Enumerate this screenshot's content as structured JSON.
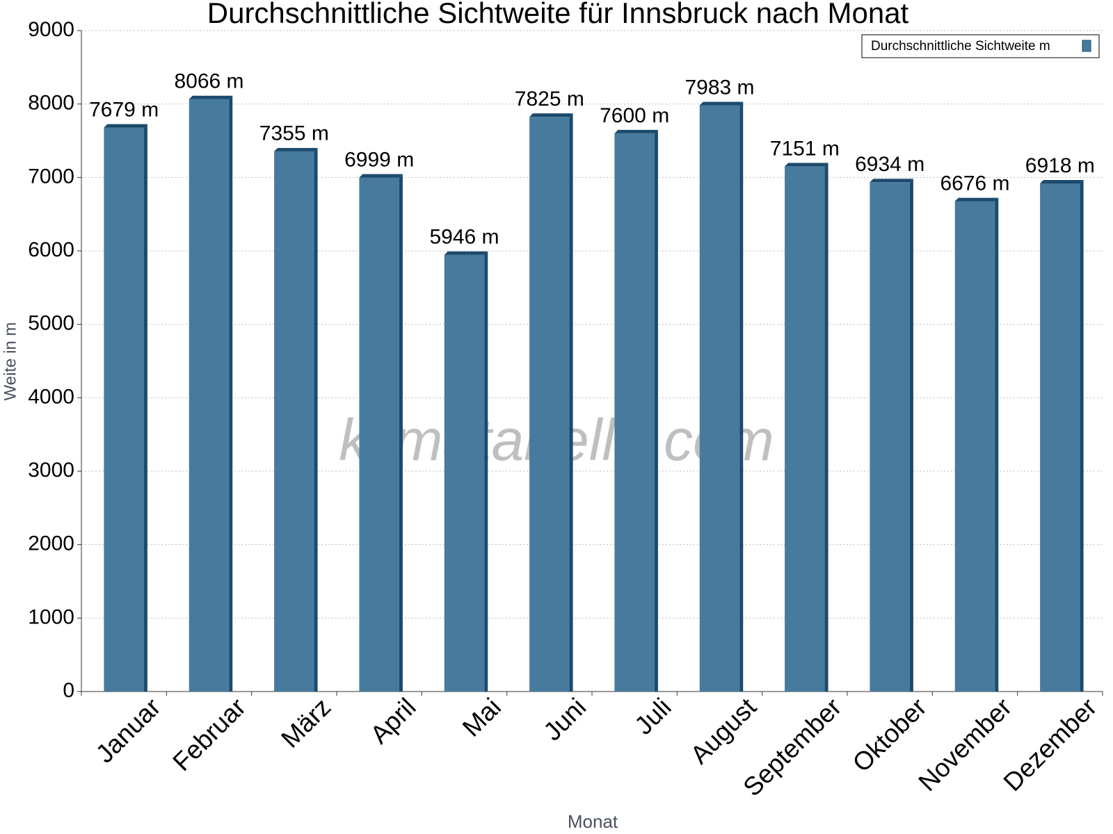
{
  "chart_data": {
    "type": "bar",
    "title": "Durchschnittliche Sichtweite für Innsbruck nach Monat",
    "x_label": "Monat",
    "y_label": "Weite in m",
    "watermark": "klimatabelle.com",
    "categories": [
      "Januar",
      "Februar",
      "März",
      "April",
      "Mai",
      "Juni",
      "Juli",
      "August",
      "September",
      "Oktober",
      "November",
      "Dezember"
    ],
    "series": [
      {
        "name": "Durchschnittliche Sichtweite m",
        "color": "#467b9e",
        "values": [
          7679,
          8066,
          7355,
          6999,
          5946,
          7825,
          7600,
          7983,
          7151,
          6934,
          6676,
          6918
        ],
        "value_labels": [
          "7679 m",
          "8066 m",
          "7355 m",
          "6999 m",
          "5946 m",
          "7825 m",
          "7600 m",
          "7983 m",
          "7151 m",
          "6934 m",
          "6676 m",
          "6918 m"
        ]
      }
    ],
    "ylim": [
      0,
      9000
    ],
    "yticks": [
      0,
      1000,
      2000,
      3000,
      4000,
      5000,
      6000,
      7000,
      8000,
      9000
    ],
    "grid": true,
    "legend": "upper right"
  }
}
